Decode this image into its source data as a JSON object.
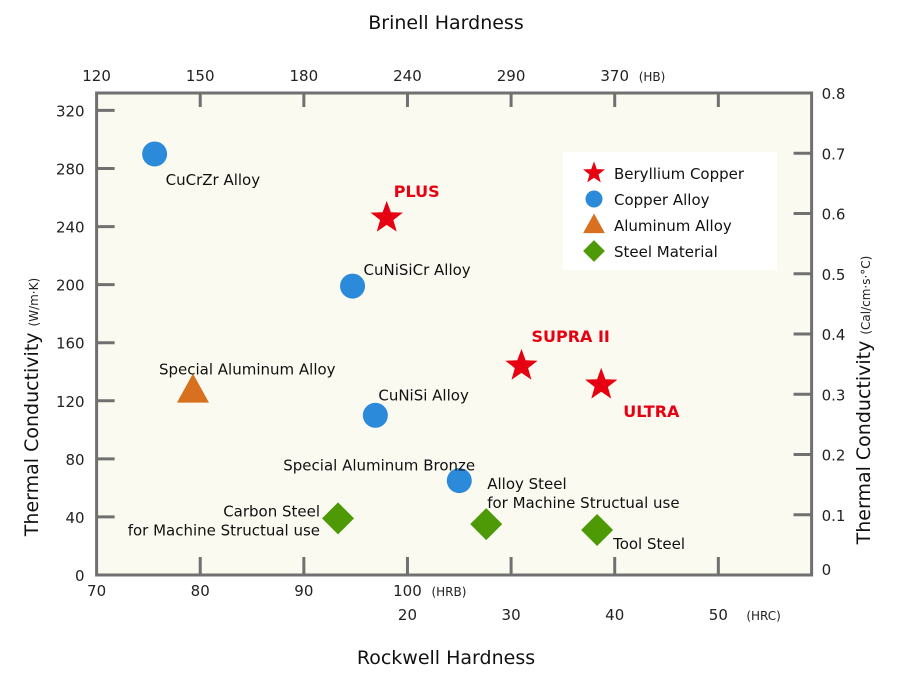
{
  "chart_data": {
    "type": "scatter",
    "title_top": "Brinell Hardness",
    "xlabel": "Rockwell Hardness",
    "ylabel_left": "Thermal Conductivity",
    "ylabel_left_unit": "(W/m·K)",
    "ylabel_right": "Thermal Conductivity",
    "ylabel_right_unit": "(Cal/cm·s·°C)",
    "xlim": [
      70,
      139
    ],
    "ylim": [
      0,
      332
    ],
    "right_axis_factor": 415,
    "x_ticks_hrb": [
      {
        "value": 70,
        "label": "70"
      },
      {
        "value": 80,
        "label": "80"
      },
      {
        "value": 90,
        "label": "90"
      },
      {
        "value": 100,
        "label": "100"
      }
    ],
    "x_hrb_unit": "(HRB)",
    "x_ticks_hrc": [
      {
        "value": 100,
        "label": "20"
      },
      {
        "value": 110,
        "label": "30"
      },
      {
        "value": 120,
        "label": "40"
      },
      {
        "value": 130,
        "label": "50"
      }
    ],
    "x_hrc_unit": "(HRC)",
    "x_ticks_top": [
      {
        "value": 70,
        "label": "120"
      },
      {
        "value": 80,
        "label": "150"
      },
      {
        "value": 90,
        "label": "180"
      },
      {
        "value": 100,
        "label": "240"
      },
      {
        "value": 110,
        "label": "290"
      },
      {
        "value": 120,
        "label": "370"
      }
    ],
    "x_top_unit": "(HB)",
    "y_ticks_left": [
      0,
      40,
      80,
      120,
      160,
      200,
      240,
      280,
      320
    ],
    "y_ticks_right": [
      "0",
      "0.1",
      "0.2",
      "0.3",
      "0.4",
      "0.5",
      "0.6",
      "0.7",
      "0.8"
    ],
    "legend": {
      "placement": "top-right",
      "entries": [
        {
          "series": "beryllium",
          "label": "Beryllium Copper"
        },
        {
          "series": "copper",
          "label": "Copper Alloy"
        },
        {
          "series": "aluminum",
          "label": "Aluminum Alloy"
        },
        {
          "series": "steel",
          "label": "Steel Material"
        }
      ]
    },
    "series_colors": {
      "beryllium": "#e60012",
      "copper": "#2b8ad9",
      "aluminum": "#d87020",
      "steel": "#4e9a06"
    },
    "points": [
      {
        "series": "copper",
        "x": 75.6,
        "y": 290,
        "label": [
          "CuCrZr Alloy"
        ]
      },
      {
        "series": "beryllium",
        "x": 98.0,
        "y": 246,
        "label": [
          "PLUS"
        ]
      },
      {
        "series": "copper",
        "x": 94.7,
        "y": 199,
        "label": [
          "CuNiSiCr Alloy"
        ]
      },
      {
        "series": "beryllium",
        "x": 111.0,
        "y": 144,
        "label": [
          "SUPRA II"
        ]
      },
      {
        "series": "beryllium",
        "x": 118.7,
        "y": 131,
        "label": [
          "ULTRA"
        ]
      },
      {
        "series": "aluminum",
        "x": 79.3,
        "y": 127,
        "label": [
          "Special Aluminum Alloy"
        ]
      },
      {
        "series": "copper",
        "x": 96.9,
        "y": 110,
        "label": [
          "CuNiSi Alloy"
        ]
      },
      {
        "series": "copper",
        "x": 105.0,
        "y": 65,
        "label": [
          "Special Aluminum Bronze"
        ]
      },
      {
        "series": "steel",
        "x": 93.3,
        "y": 39,
        "label": [
          "Carbon Steel",
          "for Machine Structual use"
        ]
      },
      {
        "series": "steel",
        "x": 107.6,
        "y": 35,
        "label": [
          "Alloy Steel",
          "for Machine Structual use"
        ]
      },
      {
        "series": "steel",
        "x": 118.3,
        "y": 31,
        "label": [
          "Tool Steel"
        ]
      }
    ]
  }
}
